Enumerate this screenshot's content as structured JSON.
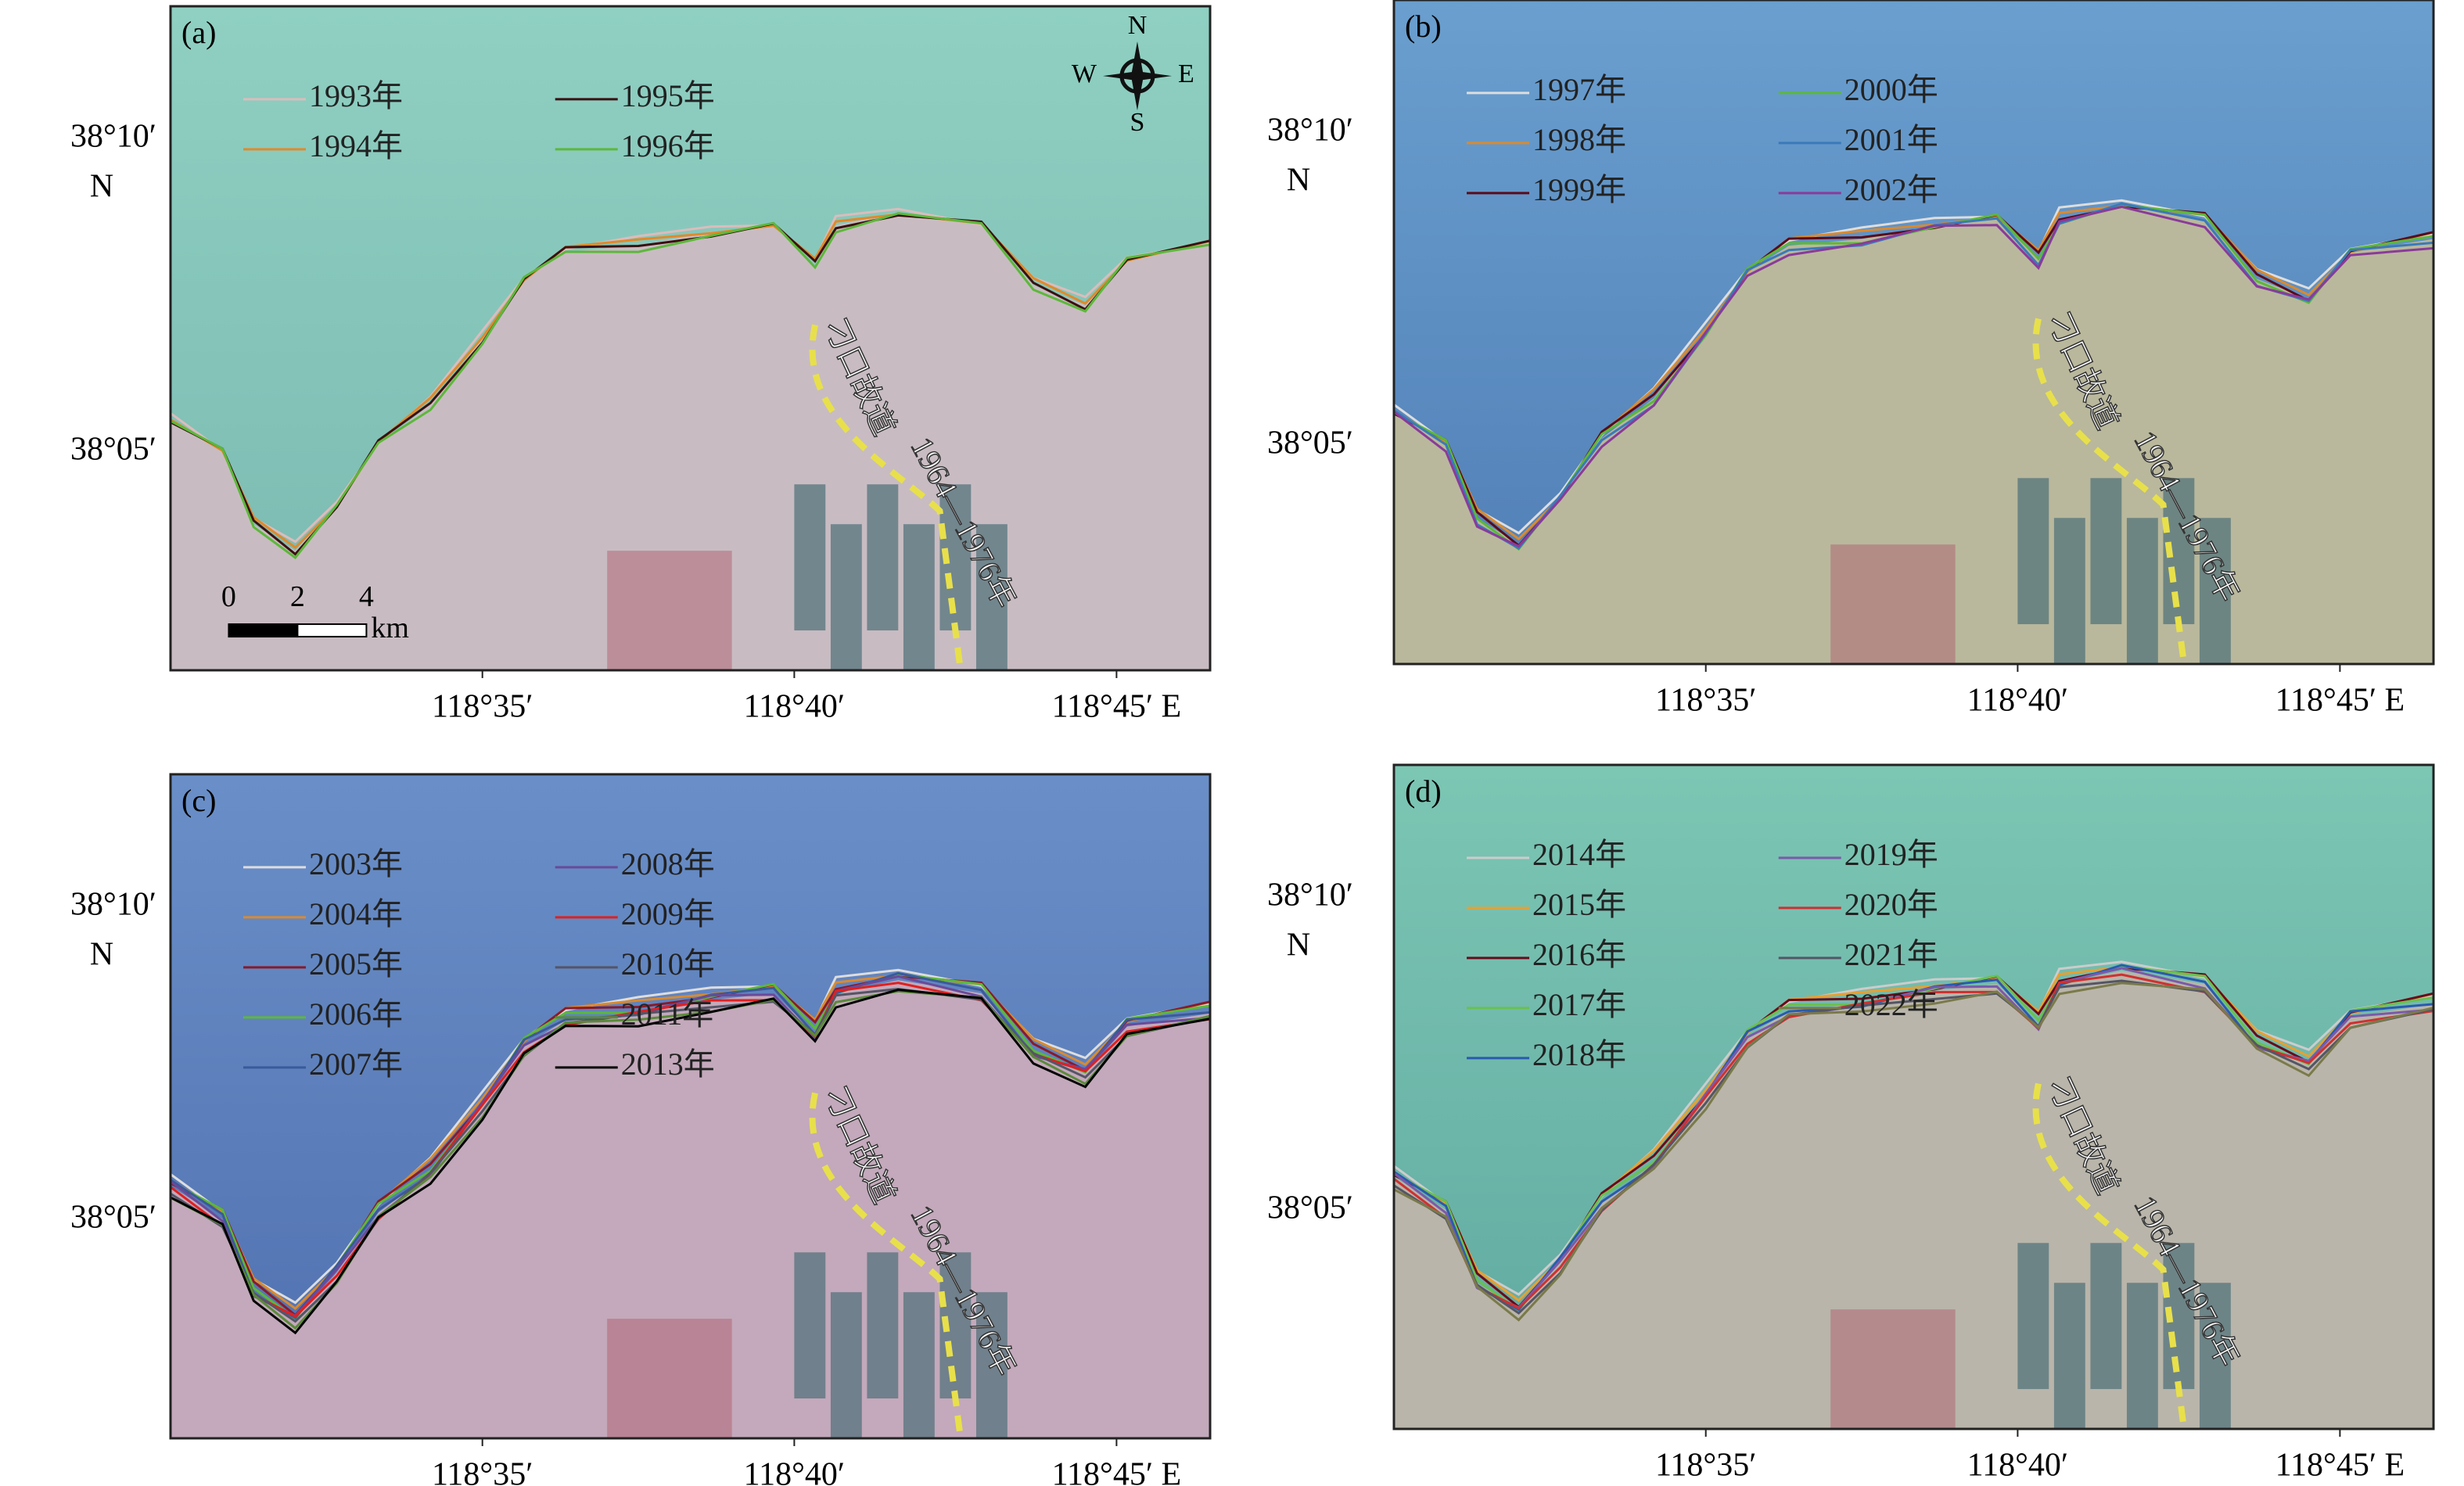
{
  "panels": [
    {
      "label": "(a)",
      "lat_labels": [
        "38°10′",
        "38°05′"
      ],
      "lat_hemisphere": "N",
      "lon_labels": [
        "118°35′",
        "118°40′",
        "118°45′ E"
      ],
      "legend": [
        [
          {
            "name": "1993年",
            "color": "#dcbcbc"
          },
          {
            "name": "1994年",
            "color": "#e08a2a"
          }
        ],
        [
          {
            "name": "1995年",
            "color": "#3a1010"
          },
          {
            "name": "1996年",
            "color": "#5cb83a"
          }
        ]
      ],
      "annotation": [
        "刁口故道",
        "1964—1976年"
      ],
      "compass": {
        "N": "N",
        "S": "S",
        "W": "W",
        "E": "E"
      },
      "scale_bar": {
        "ticks": [
          0,
          2,
          4
        ],
        "unit": "km"
      }
    },
    {
      "label": "(b)",
      "lat_labels": [
        "38°10′",
        "38°05′"
      ],
      "lat_hemisphere": "N",
      "lon_labels": [
        "118°35′",
        "118°40′",
        "118°45′ E"
      ],
      "legend": [
        [
          {
            "name": "1997年",
            "color": "#dddddd"
          },
          {
            "name": "1998年",
            "color": "#d98a30"
          },
          {
            "name": "1999年",
            "color": "#5a0a1a"
          }
        ],
        [
          {
            "name": "2000年",
            "color": "#5cb83a"
          },
          {
            "name": "2001年",
            "color": "#3a7ab8"
          },
          {
            "name": "2002年",
            "color": "#8a3a9a"
          }
        ]
      ],
      "annotation": [
        "刁口故道",
        "1964—1976年"
      ]
    },
    {
      "label": "(c)",
      "lat_labels": [
        "38°10′",
        "38°05′"
      ],
      "lat_hemisphere": "N",
      "lon_labels": [
        "118°35′",
        "118°40′",
        "118°45′ E"
      ],
      "legend": [
        [
          {
            "name": "2003年",
            "color": "#dddddd"
          },
          {
            "name": "2004年",
            "color": "#d98a30"
          },
          {
            "name": "2005年",
            "color": "#8a1a2a"
          },
          {
            "name": "2006年",
            "color": "#5cb83a"
          },
          {
            "name": "2007年",
            "color": "#3a5a9a"
          }
        ],
        [
          {
            "name": "2008年",
            "color": "#6a4a9a"
          },
          {
            "name": "2009年",
            "color": "#e02020"
          },
          {
            "name": "2010年",
            "color": "#555566"
          },
          {
            "name": "2011年",
            "color": "#5a8a3a"
          },
          {
            "name": "2013年",
            "color": "#000000"
          }
        ]
      ],
      "annotation": [
        "刁口故道",
        "1964—1976年"
      ]
    },
    {
      "label": "(d)",
      "lat_labels": [
        "38°10′",
        "38°05′"
      ],
      "lat_hemisphere": "N",
      "lon_labels": [
        "118°35′",
        "118°40′",
        "118°45′ E"
      ],
      "legend": [
        [
          {
            "name": "2014年",
            "color": "#cccccc"
          },
          {
            "name": "2015年",
            "color": "#e8a030"
          },
          {
            "name": "2016年",
            "color": "#6a0a1a"
          },
          {
            "name": "2017年",
            "color": "#6ac050"
          },
          {
            "name": "2018年",
            "color": "#2a5ab0"
          }
        ],
        [
          {
            "name": "2019年",
            "color": "#7a5aaa"
          },
          {
            "name": "2020年",
            "color": "#d03030"
          },
          {
            "name": "2021年",
            "color": "#555566"
          },
          {
            "name": "2022年",
            "color": "#7a7a4a"
          }
        ]
      ],
      "annotation": [
        "刁口故道",
        "1964—1976年"
      ]
    }
  ]
}
